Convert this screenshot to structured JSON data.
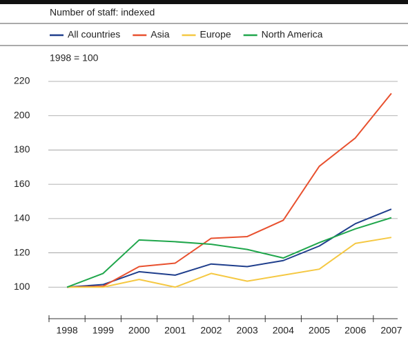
{
  "chart_data": {
    "type": "line",
    "title": "Number of staff: indexed",
    "subtitle": "1998 = 100",
    "categories": [
      "1998",
      "1999",
      "2000",
      "2001",
      "2002",
      "2003",
      "2004",
      "2005",
      "2006",
      "2007"
    ],
    "series": [
      {
        "name": "All countries",
        "color": "#1f3e8c",
        "values": [
          100,
          101.5,
          109,
          107,
          113.5,
          112,
          115.5,
          124,
          137,
          145.5
        ]
      },
      {
        "name": "Asia",
        "color": "#e8502e",
        "values": [
          100,
          100.5,
          112,
          114,
          128.5,
          129.5,
          139,
          170.5,
          187,
          213
        ]
      },
      {
        "name": "Europe",
        "color": "#f5c842",
        "values": [
          100,
          100,
          104.5,
          100,
          108,
          103.5,
          107,
          110.5,
          125.5,
          129
        ]
      },
      {
        "name": "North America",
        "color": "#1fa64b",
        "values": [
          100,
          108,
          127.5,
          126.5,
          125,
          122,
          117,
          126,
          134,
          140.5
        ]
      }
    ],
    "ylim": [
      80,
      220
    ],
    "yticks": [
      100,
      120,
      140,
      160,
      180,
      200,
      220
    ],
    "grid": true
  }
}
